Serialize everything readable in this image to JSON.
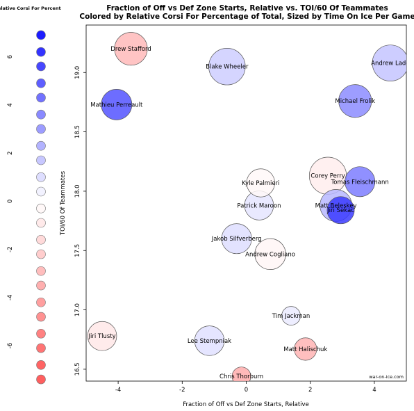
{
  "chart_data": {
    "type": "scatter",
    "title": "Fraction of Off vs Def Zone Starts, Relative vs. TOI/60 Of Teammates",
    "subtitle": "Colored by Relative Corsi For Percentage of Total, Sized by Time On Ice Per Game",
    "xlabel": "Fraction of Off vs Def Zone Starts, Relative",
    "ylabel": "TOI/60 Of Teammates",
    "xlim": [
      -5,
      5
    ],
    "ylim": [
      16.4,
      19.4
    ],
    "xticks": [
      -4,
      -2,
      0,
      2,
      4
    ],
    "yticks": [
      16.5,
      17.0,
      17.5,
      18.0,
      18.5,
      19.0
    ],
    "grid": false,
    "credit": "war-on-ice.com",
    "legend": {
      "title": "Relative Corsi For Percentage of Total",
      "placement": "left",
      "range": [
        -7.5,
        7
      ],
      "ticks": [
        6,
        4,
        2,
        0,
        -2,
        -4,
        -6
      ],
      "swatch_values": [
        6.9,
        6.2,
        5.6,
        4.9,
        4.3,
        3.6,
        3.0,
        2.3,
        1.7,
        1.0,
        0.4,
        -0.3,
        -0.9,
        -1.6,
        -2.2,
        -2.9,
        -3.5,
        -4.2,
        -4.8,
        -5.5,
        -6.1,
        -6.8,
        -7.4
      ]
    },
    "points": [
      {
        "name": "Drew Stafford",
        "x": -3.6,
        "y": 19.2,
        "value": -3.0,
        "size": 17.5
      },
      {
        "name": "Blake Wheeler",
        "x": -0.6,
        "y": 19.05,
        "value": 1.5,
        "size": 19.5
      },
      {
        "name": "Andrew Ladd",
        "x": 4.5,
        "y": 19.08,
        "value": 1.8,
        "size": 19.2
      },
      {
        "name": "Mathieu Perreault",
        "x": -4.05,
        "y": 18.73,
        "value": 5.2,
        "size": 16.3
      },
      {
        "name": "Michael Frolik",
        "x": 3.4,
        "y": 18.76,
        "value": 3.5,
        "size": 17.5
      },
      {
        "name": "Corey Perry",
        "x": 2.55,
        "y": 18.13,
        "value": -0.8,
        "size": 19.8
      },
      {
        "name": "Tomas Fleischmann",
        "x": 3.55,
        "y": 18.08,
        "value": 4.0,
        "size": 16.0
      },
      {
        "name": "Kyle Palmieri",
        "x": 0.45,
        "y": 18.07,
        "value": -0.3,
        "size": 15.0
      },
      {
        "name": "Patrick Maroon",
        "x": 0.4,
        "y": 17.88,
        "value": 0.8,
        "size": 15.5
      },
      {
        "name": "Matt Beleskey",
        "x": 2.8,
        "y": 17.88,
        "value": 2.2,
        "size": 17.0
      },
      {
        "name": "Jiri Sekac",
        "x": 2.95,
        "y": 17.84,
        "value": 6.0,
        "size": 14.5
      },
      {
        "name": "Jakob Silfverberg",
        "x": -0.3,
        "y": 17.6,
        "value": 1.0,
        "size": 16.0
      },
      {
        "name": "Andrew Cogliano",
        "x": 0.75,
        "y": 17.47,
        "value": -0.4,
        "size": 16.5
      },
      {
        "name": "Tim Jackman",
        "x": 1.4,
        "y": 16.95,
        "value": 0.6,
        "size": 10.0
      },
      {
        "name": "Jiri Tlusty",
        "x": -4.5,
        "y": 16.78,
        "value": -1.0,
        "size": 15.5
      },
      {
        "name": "Lee Stempniak",
        "x": -1.15,
        "y": 16.74,
        "value": 0.9,
        "size": 15.8
      },
      {
        "name": "Matt Halischuk",
        "x": 1.85,
        "y": 16.67,
        "value": -3.3,
        "size": 12.0
      },
      {
        "name": "Chris Thorburn",
        "x": -0.15,
        "y": 16.44,
        "value": -3.6,
        "size": 10.0
      }
    ]
  }
}
